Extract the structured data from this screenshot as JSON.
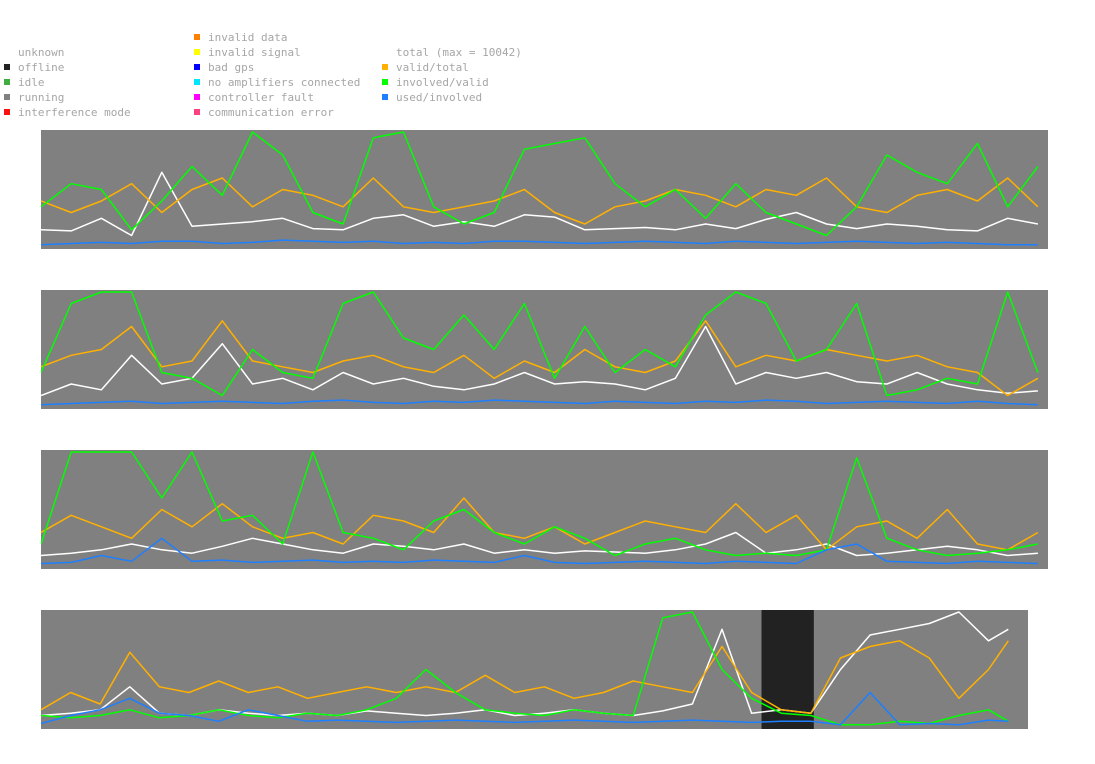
{
  "legend": {
    "col1": [
      {
        "label": "unknown",
        "color": ""
      },
      {
        "label": "offline",
        "color": "#222222"
      },
      {
        "label": "idle",
        "color": "#3fae3f"
      },
      {
        "label": "running",
        "color": "#808080"
      },
      {
        "label": "interference mode",
        "color": "#ff1010"
      }
    ],
    "col2": [
      {
        "label": "invalid data",
        "color": "#ff7f00"
      },
      {
        "label": "invalid signal",
        "color": "#ffff00"
      },
      {
        "label": "bad gps",
        "color": "#0000ff"
      },
      {
        "label": "no amplifiers connected",
        "color": "#00e5ff"
      },
      {
        "label": "controller fault",
        "color": "#ff00ff"
      },
      {
        "label": "communication error",
        "color": "#ff3f7f"
      }
    ],
    "col3": [
      {
        "label": "total (max = 10042)",
        "color": ""
      },
      {
        "label": "valid/total",
        "color": "#ffb000"
      },
      {
        "label": "involved/valid",
        "color": "#00ff00"
      },
      {
        "label": "used/involved",
        "color": "#1e7fff"
      }
    ]
  },
  "chart_data": [
    {
      "type": "line",
      "panel": 1,
      "x": [
        0,
        3,
        6,
        9,
        12,
        15,
        18,
        21,
        24,
        27,
        30,
        33,
        36,
        39,
        42,
        45,
        48,
        51,
        54,
        57,
        60,
        63,
        66,
        69,
        72,
        75,
        78,
        81,
        84,
        87,
        90,
        93,
        96,
        99
      ],
      "ylim": [
        0,
        1
      ],
      "series": [
        {
          "name": "total",
          "color": "#ffffff",
          "values": [
            0.15,
            0.14,
            0.25,
            0.1,
            0.65,
            0.18,
            0.2,
            0.22,
            0.25,
            0.16,
            0.15,
            0.25,
            0.28,
            0.18,
            0.22,
            0.18,
            0.28,
            0.26,
            0.15,
            0.16,
            0.17,
            0.15,
            0.2,
            0.16,
            0.24,
            0.3,
            0.2,
            0.16,
            0.2,
            0.18,
            0.15,
            0.14,
            0.25,
            0.2
          ]
        },
        {
          "name": "valid/total",
          "color": "#ffb000",
          "values": [
            0.4,
            0.3,
            0.4,
            0.55,
            0.3,
            0.5,
            0.6,
            0.35,
            0.5,
            0.45,
            0.35,
            0.6,
            0.35,
            0.3,
            0.35,
            0.4,
            0.5,
            0.3,
            0.2,
            0.35,
            0.4,
            0.5,
            0.45,
            0.35,
            0.5,
            0.45,
            0.6,
            0.35,
            0.3,
            0.45,
            0.5,
            0.4,
            0.6,
            0.35
          ]
        },
        {
          "name": "involved/valid",
          "color": "#00ff00",
          "values": [
            0.35,
            0.55,
            0.5,
            0.15,
            0.4,
            0.7,
            0.45,
            1.0,
            0.8,
            0.3,
            0.2,
            0.95,
            1.0,
            0.35,
            0.2,
            0.3,
            0.85,
            0.9,
            0.95,
            0.55,
            0.35,
            0.5,
            0.25,
            0.55,
            0.3,
            0.2,
            0.1,
            0.35,
            0.8,
            0.65,
            0.55,
            0.9,
            0.35,
            0.7
          ]
        },
        {
          "name": "used/involved",
          "color": "#1e7fff",
          "values": [
            0.02,
            0.03,
            0.04,
            0.03,
            0.05,
            0.05,
            0.03,
            0.04,
            0.06,
            0.05,
            0.04,
            0.05,
            0.03,
            0.04,
            0.03,
            0.05,
            0.05,
            0.04,
            0.03,
            0.04,
            0.05,
            0.04,
            0.03,
            0.05,
            0.04,
            0.03,
            0.04,
            0.05,
            0.04,
            0.03,
            0.04,
            0.03,
            0.02,
            0.02
          ]
        }
      ]
    },
    {
      "type": "line",
      "panel": 2,
      "x": [
        0,
        3,
        6,
        9,
        12,
        15,
        18,
        21,
        24,
        27,
        30,
        33,
        36,
        39,
        42,
        45,
        48,
        51,
        54,
        57,
        60,
        63,
        66,
        69,
        72,
        75,
        78,
        81,
        84,
        87,
        90,
        93,
        96,
        99
      ],
      "ylim": [
        0,
        1
      ],
      "series": [
        {
          "name": "total",
          "color": "#ffffff",
          "values": [
            0.1,
            0.2,
            0.15,
            0.45,
            0.2,
            0.25,
            0.55,
            0.2,
            0.25,
            0.15,
            0.3,
            0.2,
            0.25,
            0.18,
            0.15,
            0.2,
            0.3,
            0.2,
            0.22,
            0.2,
            0.15,
            0.25,
            0.7,
            0.2,
            0.3,
            0.25,
            0.3,
            0.22,
            0.2,
            0.3,
            0.2,
            0.15,
            0.12,
            0.14
          ]
        },
        {
          "name": "valid/total",
          "color": "#ffb000",
          "values": [
            0.35,
            0.45,
            0.5,
            0.7,
            0.35,
            0.4,
            0.75,
            0.4,
            0.35,
            0.3,
            0.4,
            0.45,
            0.35,
            0.3,
            0.45,
            0.25,
            0.4,
            0.3,
            0.5,
            0.35,
            0.3,
            0.4,
            0.75,
            0.35,
            0.45,
            0.4,
            0.5,
            0.45,
            0.4,
            0.45,
            0.35,
            0.3,
            0.1,
            0.25
          ]
        },
        {
          "name": "involved/valid",
          "color": "#00ff00",
          "values": [
            0.3,
            0.9,
            1.0,
            1.0,
            0.3,
            0.25,
            0.1,
            0.5,
            0.3,
            0.25,
            0.9,
            1.0,
            0.6,
            0.5,
            0.8,
            0.5,
            0.9,
            0.25,
            0.7,
            0.3,
            0.5,
            0.35,
            0.8,
            1.0,
            0.9,
            0.4,
            0.5,
            0.9,
            0.1,
            0.15,
            0.25,
            0.2,
            1.0,
            0.3
          ]
        },
        {
          "name": "used/involved",
          "color": "#1e7fff",
          "values": [
            0.02,
            0.03,
            0.04,
            0.05,
            0.03,
            0.04,
            0.05,
            0.04,
            0.03,
            0.05,
            0.06,
            0.04,
            0.03,
            0.05,
            0.04,
            0.06,
            0.05,
            0.04,
            0.03,
            0.05,
            0.04,
            0.03,
            0.05,
            0.04,
            0.06,
            0.05,
            0.03,
            0.04,
            0.05,
            0.04,
            0.03,
            0.05,
            0.03,
            0.02
          ]
        }
      ]
    },
    {
      "type": "line",
      "panel": 3,
      "x": [
        0,
        3,
        6,
        9,
        12,
        15,
        18,
        21,
        24,
        27,
        30,
        33,
        36,
        39,
        42,
        45,
        48,
        51,
        54,
        57,
        60,
        63,
        66,
        69,
        72,
        75,
        78,
        81,
        84,
        87,
        90,
        93,
        96,
        99
      ],
      "ylim": [
        0,
        1
      ],
      "series": [
        {
          "name": "total",
          "color": "#ffffff",
          "values": [
            0.1,
            0.12,
            0.15,
            0.2,
            0.15,
            0.12,
            0.18,
            0.25,
            0.2,
            0.15,
            0.12,
            0.2,
            0.18,
            0.15,
            0.2,
            0.12,
            0.15,
            0.12,
            0.14,
            0.13,
            0.12,
            0.15,
            0.2,
            0.3,
            0.12,
            0.15,
            0.2,
            0.1,
            0.12,
            0.15,
            0.18,
            0.15,
            0.1,
            0.12
          ]
        },
        {
          "name": "valid/total",
          "color": "#ffb000",
          "values": [
            0.3,
            0.45,
            0.35,
            0.25,
            0.5,
            0.35,
            0.55,
            0.35,
            0.25,
            0.3,
            0.2,
            0.45,
            0.4,
            0.3,
            0.6,
            0.3,
            0.25,
            0.35,
            0.2,
            0.3,
            0.4,
            0.35,
            0.3,
            0.55,
            0.3,
            0.45,
            0.15,
            0.35,
            0.4,
            0.25,
            0.5,
            0.2,
            0.15,
            0.3
          ]
        },
        {
          "name": "involved/valid",
          "color": "#00ff00",
          "values": [
            0.2,
            1.0,
            1.0,
            1.0,
            0.6,
            1.0,
            0.4,
            0.45,
            0.2,
            1.0,
            0.3,
            0.25,
            0.15,
            0.4,
            0.5,
            0.3,
            0.2,
            0.35,
            0.25,
            0.1,
            0.2,
            0.25,
            0.15,
            0.1,
            0.12,
            0.1,
            0.15,
            0.95,
            0.25,
            0.15,
            0.1,
            0.12,
            0.15,
            0.2
          ]
        },
        {
          "name": "used/involved",
          "color": "#1e7fff",
          "values": [
            0.03,
            0.04,
            0.1,
            0.05,
            0.25,
            0.05,
            0.06,
            0.04,
            0.05,
            0.06,
            0.04,
            0.05,
            0.04,
            0.06,
            0.05,
            0.04,
            0.1,
            0.04,
            0.03,
            0.04,
            0.05,
            0.04,
            0.03,
            0.05,
            0.04,
            0.03,
            0.15,
            0.2,
            0.05,
            0.04,
            0.03,
            0.05,
            0.04,
            0.03
          ]
        }
      ]
    },
    {
      "type": "line",
      "panel": 4,
      "offline_range": [
        73,
        78.3
      ],
      "x": [
        0,
        3,
        6,
        9,
        12,
        15,
        18,
        21,
        24,
        27,
        30,
        33,
        36,
        39,
        42,
        45,
        48,
        51,
        54,
        57,
        60,
        63,
        66,
        69,
        72,
        75,
        78,
        81,
        84,
        87,
        90,
        93,
        96,
        98
      ],
      "ylim": [
        0,
        1
      ],
      "series": [
        {
          "name": "total",
          "color": "#ffffff",
          "values": [
            0.1,
            0.12,
            0.15,
            0.35,
            0.12,
            0.1,
            0.15,
            0.12,
            0.1,
            0.12,
            0.1,
            0.14,
            0.12,
            0.1,
            0.12,
            0.15,
            0.1,
            0.12,
            0.15,
            0.12,
            0.1,
            0.14,
            0.2,
            0.85,
            0.12,
            0.15,
            0.12,
            0.5,
            0.8,
            0.85,
            0.9,
            1.0,
            0.75,
            0.85
          ]
        },
        {
          "name": "valid/total",
          "color": "#ffb000",
          "values": [
            0.15,
            0.3,
            0.2,
            0.65,
            0.35,
            0.3,
            0.4,
            0.3,
            0.35,
            0.25,
            0.3,
            0.35,
            0.3,
            0.35,
            0.3,
            0.45,
            0.3,
            0.35,
            0.25,
            0.3,
            0.4,
            0.35,
            0.3,
            0.7,
            0.3,
            0.15,
            0.12,
            0.6,
            0.7,
            0.75,
            0.6,
            0.25,
            0.5,
            0.75
          ]
        },
        {
          "name": "involved/valid",
          "color": "#00ff00",
          "values": [
            0.1,
            0.08,
            0.1,
            0.15,
            0.08,
            0.1,
            0.15,
            0.1,
            0.08,
            0.12,
            0.1,
            0.15,
            0.25,
            0.5,
            0.3,
            0.15,
            0.12,
            0.1,
            0.15,
            0.12,
            0.1,
            0.95,
            1.0,
            0.5,
            0.25,
            0.12,
            0.1,
            0.02,
            0.02,
            0.05,
            0.03,
            0.1,
            0.15,
            0.05
          ]
        },
        {
          "name": "used/involved",
          "color": "#1e7fff",
          "values": [
            0.03,
            0.1,
            0.15,
            0.25,
            0.12,
            0.1,
            0.05,
            0.15,
            0.1,
            0.05,
            0.06,
            0.05,
            0.04,
            0.05,
            0.06,
            0.05,
            0.04,
            0.05,
            0.06,
            0.05,
            0.04,
            0.05,
            0.06,
            0.05,
            0.04,
            0.05,
            0.05,
            0.02,
            0.3,
            0.02,
            0.03,
            0.02,
            0.06,
            0.05
          ]
        }
      ]
    }
  ]
}
